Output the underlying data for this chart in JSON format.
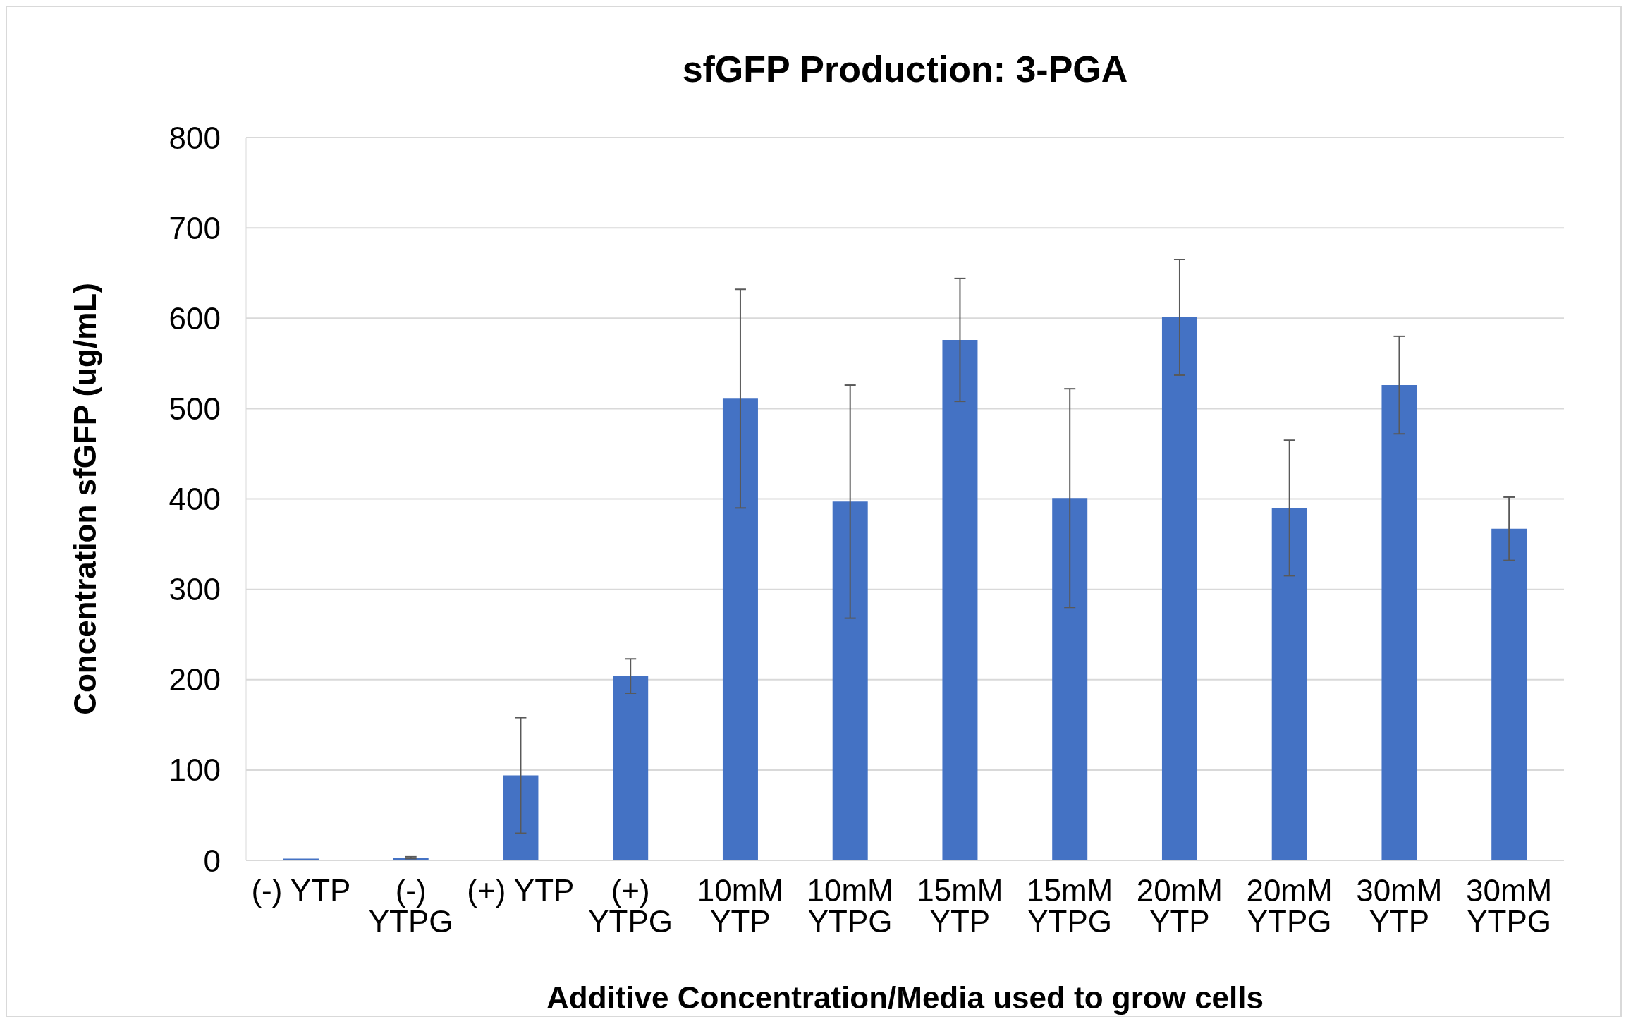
{
  "chart_data": {
    "type": "bar",
    "title": "sfGFP Production: 3-PGA",
    "xlabel": "Additive  Concentration/Media used to grow cells",
    "ylabel": "Concentration sfGFP (ug/mL)",
    "categories": [
      "(-) YTP",
      "(-) YTPG",
      "(+) YTP",
      "(+) YTPG",
      "10mM YTP",
      "10mM YTPG",
      "15mM YTP",
      "15mM YTPG",
      "20mM YTP",
      "20mM YTPG",
      "30mM YTP",
      "30mM YTPG"
    ],
    "values": [
      2,
      3,
      94,
      204,
      511,
      397,
      576,
      401,
      601,
      390,
      526,
      367
    ],
    "errors": [
      null,
      1,
      64,
      19,
      121,
      129,
      68,
      121,
      64,
      75,
      54,
      35
    ],
    "color": "#4472c4",
    "ylim": [
      0,
      800
    ],
    "yticks": [
      0,
      100,
      200,
      300,
      400,
      500,
      600,
      700,
      800
    ],
    "grid": "y"
  }
}
